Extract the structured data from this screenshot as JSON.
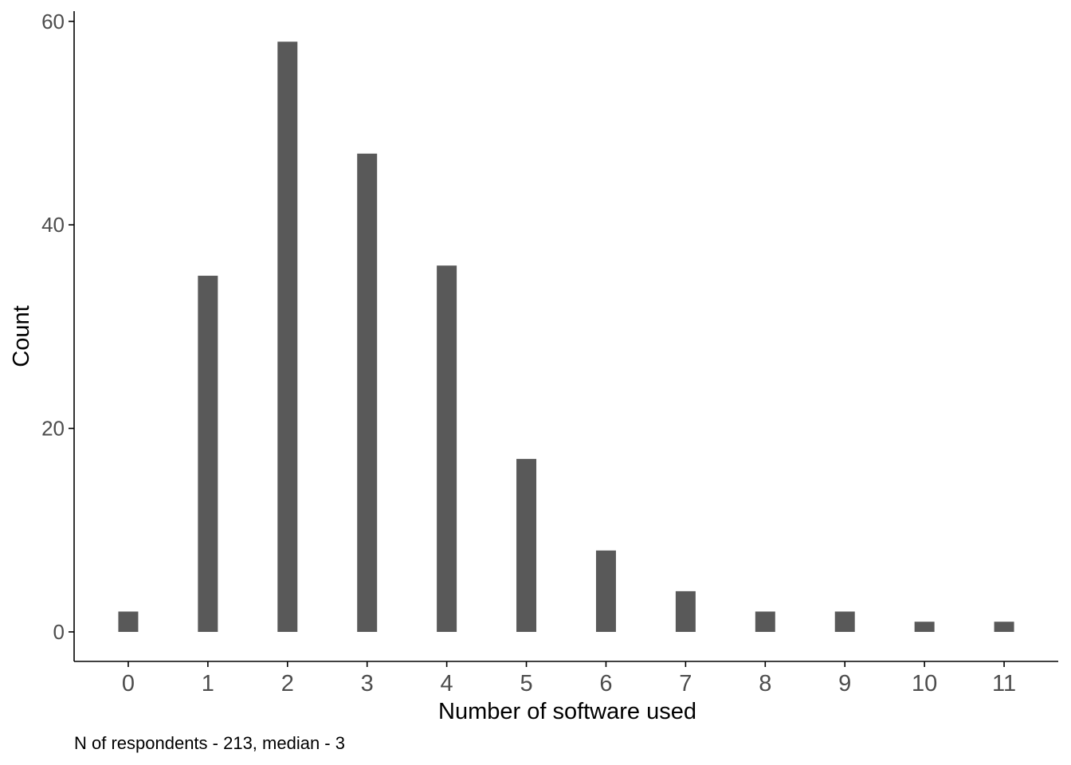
{
  "chart_data": {
    "type": "bar",
    "title": "",
    "xlabel": "Number of software used",
    "ylabel": "Count",
    "caption": "N of respondents - 213, median - 3",
    "categories": [
      "0",
      "1",
      "2",
      "3",
      "4",
      "5",
      "6",
      "7",
      "8",
      "9",
      "10",
      "11"
    ],
    "values": [
      2,
      35,
      58,
      47,
      36,
      17,
      8,
      4,
      2,
      2,
      1,
      1
    ],
    "xlim": [
      -0.68,
      11.68
    ],
    "ylim": [
      -2.9,
      61
    ],
    "yticks": [
      0,
      20,
      40,
      60
    ],
    "grid": false,
    "legend": "none",
    "bar_color": "#595959",
    "axis_color": "#000000",
    "tick_label_color": "#4d4d4d"
  }
}
